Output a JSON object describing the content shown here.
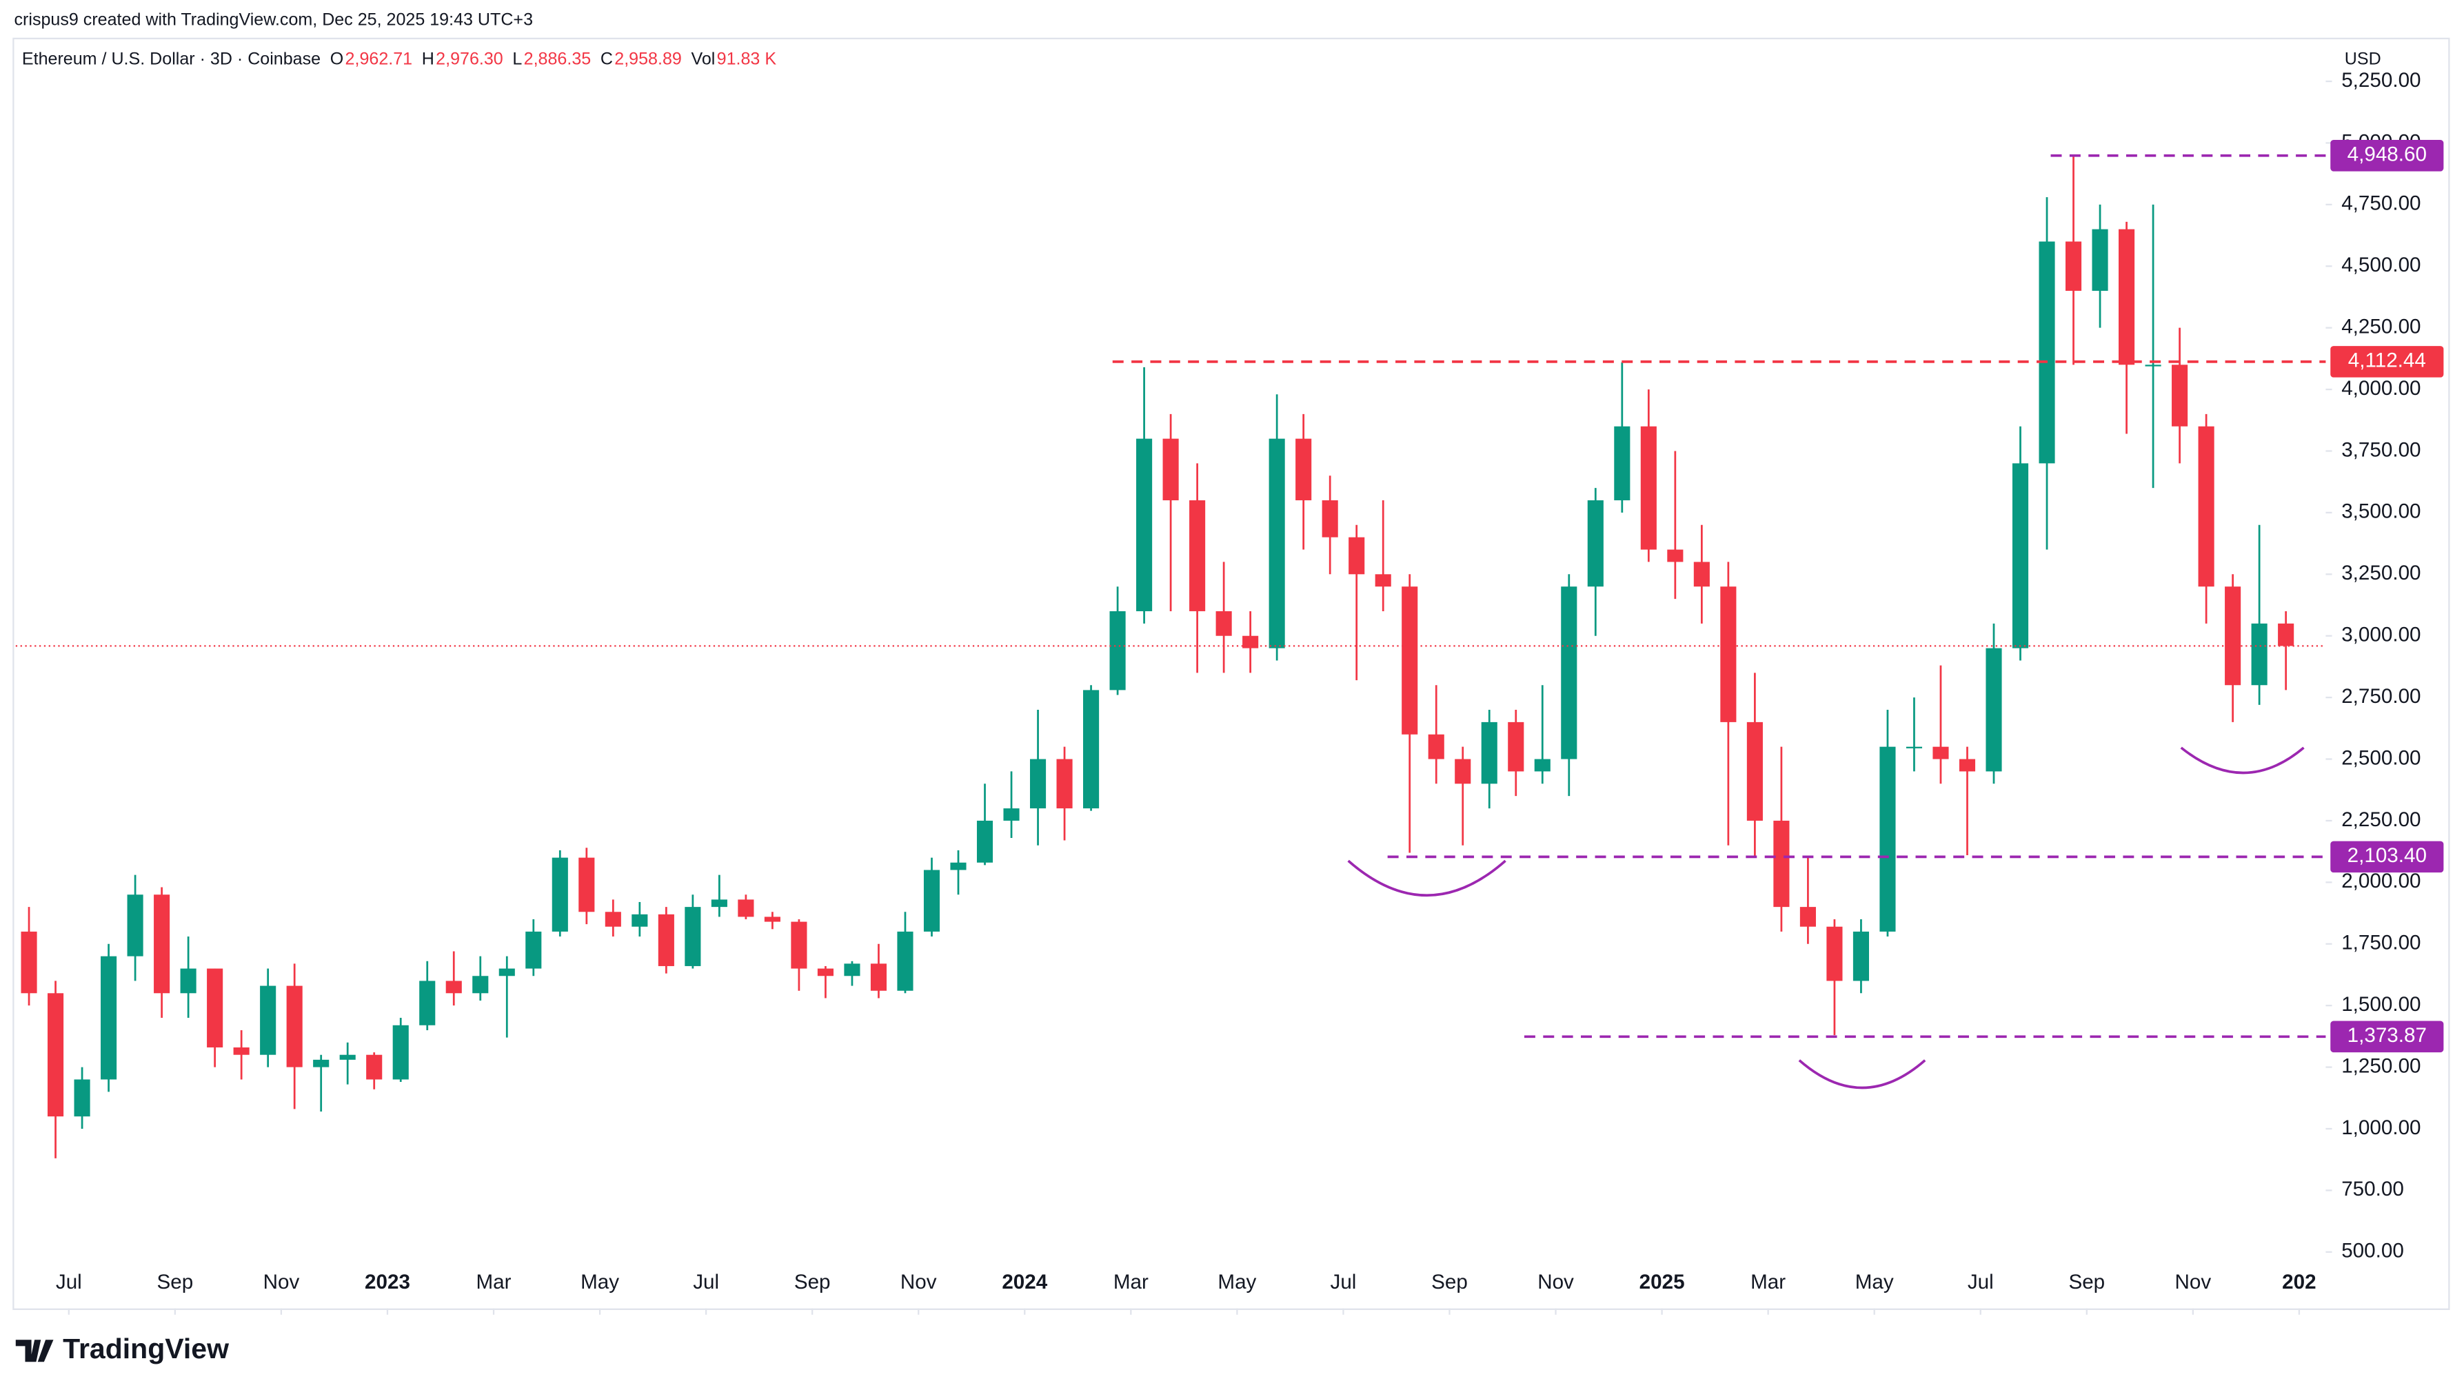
{
  "header": {
    "credit": "crispus9 created with TradingView.com, Dec 25, 2025 19:43 UTC+3",
    "symbol": "Ethereum / U.S. Dollar · 3D · Coinbase",
    "ohlc": [
      {
        "key": "O",
        "value": "2,962.71"
      },
      {
        "key": "H",
        "value": "2,976.30"
      },
      {
        "key": "L",
        "value": "2,886.35"
      },
      {
        "key": "C",
        "value": "2,958.89"
      },
      {
        "key": "Vol",
        "value": "91.83 K"
      }
    ],
    "currency": "USD"
  },
  "footer": {
    "brand": "TradingView"
  },
  "chart_data": {
    "type": "candlestick",
    "categories": [
      null,
      null,
      null,
      null,
      null,
      null,
      null,
      null,
      null,
      null,
      null,
      null,
      null,
      null,
      null,
      null,
      null,
      null,
      null,
      null,
      null,
      null,
      null,
      null,
      null,
      null,
      null,
      null,
      null,
      null,
      null,
      null,
      null,
      null,
      null,
      null,
      null,
      null,
      null,
      null,
      null,
      null,
      null,
      null,
      null,
      null,
      null,
      null,
      null,
      null,
      null,
      null,
      null,
      null,
      null,
      null,
      null,
      null,
      null,
      null,
      null,
      null,
      null,
      null,
      null,
      null,
      null,
      null,
      null,
      null,
      null,
      null,
      null,
      null,
      null,
      null,
      null,
      null,
      null,
      null,
      null,
      null,
      null,
      null,
      null,
      null
    ],
    "open": [
      1800,
      1550,
      1050,
      1200,
      1700,
      1950,
      1550,
      1650,
      1330,
      1300,
      1580,
      1250,
      1280,
      1300,
      1200,
      1420,
      1600,
      1550,
      1620,
      1650,
      1800,
      2100,
      1880,
      1820,
      1870,
      1660,
      1900,
      1930,
      1860,
      1840,
      1650,
      1620,
      1670,
      1560,
      1800,
      2050,
      2080,
      2250,
      2300,
      2500,
      2300,
      2780,
      3100,
      3800,
      3550,
      3100,
      3000,
      2950,
      3800,
      3550,
      3400,
      3250,
      3200,
      2600,
      2500,
      2400,
      2650,
      2450,
      2500,
      3200,
      3550,
      3850,
      3350,
      3300,
      3200,
      2650,
      2250,
      1900,
      1820,
      1600,
      1800,
      2550,
      2550,
      2500,
      2450,
      2950,
      3700,
      4600,
      4400,
      4650,
      4100,
      4100,
      3850,
      3200,
      2800,
      3050
    ],
    "high": [
      1900,
      1600,
      1250,
      1750,
      2030,
      1980,
      1780,
      1650,
      1400,
      1650,
      1670,
      1300,
      1350,
      1310,
      1450,
      1680,
      1720,
      1700,
      1700,
      1850,
      2130,
      2140,
      1930,
      1920,
      1900,
      1950,
      2030,
      1950,
      1880,
      1850,
      1660,
      1680,
      1750,
      1880,
      2100,
      2130,
      2400,
      2450,
      2700,
      2550,
      2800,
      3200,
      4090,
      3900,
      3700,
      3300,
      3100,
      3980,
      3900,
      3650,
      3450,
      3550,
      3250,
      2800,
      2550,
      2700,
      2700,
      2800,
      3250,
      3600,
      4110,
      4000,
      3750,
      3450,
      3300,
      2850,
      2550,
      2100,
      1850,
      1850,
      2700,
      2750,
      2880,
      2550,
      3050,
      3850,
      4780,
      4950,
      4750,
      4680,
      4750,
      4250,
      3900,
      3250,
      3450,
      3100
    ],
    "low": [
      1500,
      880,
      1000,
      1150,
      1600,
      1450,
      1450,
      1250,
      1200,
      1250,
      1080,
      1070,
      1180,
      1160,
      1190,
      1400,
      1500,
      1520,
      1370,
      1620,
      1780,
      1830,
      1780,
      1780,
      1630,
      1650,
      1860,
      1850,
      1810,
      1560,
      1530,
      1580,
      1530,
      1550,
      1780,
      1950,
      2070,
      2180,
      2150,
      2170,
      2290,
      2760,
      3050,
      3100,
      2850,
      2850,
      2850,
      2900,
      3350,
      3250,
      2820,
      3100,
      2120,
      2400,
      2150,
      2300,
      2350,
      2400,
      2350,
      3000,
      3500,
      3300,
      3150,
      3050,
      2150,
      2100,
      1800,
      1750,
      1380,
      1550,
      1780,
      2450,
      2400,
      2110,
      2400,
      2900,
      3350,
      4100,
      4250,
      3820,
      3600,
      3700,
      3050,
      2650,
      2720,
      2780
    ],
    "close": [
      1550,
      1050,
      1200,
      1700,
      1950,
      1550,
      1650,
      1330,
      1300,
      1580,
      1250,
      1280,
      1300,
      1200,
      1420,
      1600,
      1550,
      1620,
      1650,
      1800,
      2100,
      1880,
      1820,
      1870,
      1660,
      1900,
      1930,
      1860,
      1840,
      1650,
      1620,
      1670,
      1560,
      1800,
      2050,
      2080,
      2250,
      2300,
      2500,
      2300,
      2780,
      3100,
      3800,
      3550,
      3100,
      3000,
      2950,
      3800,
      3550,
      3400,
      3250,
      3200,
      2600,
      2500,
      2400,
      2650,
      2450,
      2500,
      3200,
      3550,
      3850,
      3350,
      3300,
      3200,
      2650,
      2250,
      1900,
      1820,
      1600,
      1800,
      2550,
      2550,
      2500,
      2450,
      2950,
      3700,
      4600,
      4400,
      4650,
      4100,
      4100,
      3850,
      3200,
      2800,
      3050,
      2958.89
    ],
    "up_color": "#089981",
    "down_color": "#f23645",
    "xlim": [
      0,
      87
    ],
    "xticks": [
      {
        "value": 2,
        "label": "Jul"
      },
      {
        "value": 6,
        "label": "Sep"
      },
      {
        "value": 10,
        "label": "Nov"
      },
      {
        "value": 14,
        "label": "2023"
      },
      {
        "value": 18,
        "label": "Mar"
      },
      {
        "value": 22,
        "label": "May"
      },
      {
        "value": 26,
        "label": "Jul"
      },
      {
        "value": 30,
        "label": "Sep"
      },
      {
        "value": 34,
        "label": "Nov"
      },
      {
        "value": 38,
        "label": "2024"
      },
      {
        "value": 42,
        "label": "Mar"
      },
      {
        "value": 46,
        "label": "May"
      },
      {
        "value": 50,
        "label": "Jul"
      },
      {
        "value": 54,
        "label": "Sep"
      },
      {
        "value": 58,
        "label": "Nov"
      },
      {
        "value": 62,
        "label": "2025"
      },
      {
        "value": 66,
        "label": "Mar"
      },
      {
        "value": 70,
        "label": "May"
      },
      {
        "value": 74,
        "label": "Jul"
      },
      {
        "value": 78,
        "label": "Sep"
      },
      {
        "value": 82,
        "label": "Nov"
      },
      {
        "value": 86,
        "label": "202"
      }
    ],
    "ylim": [
      271,
      5427
    ],
    "yticks": [
      {
        "value": 500,
        "label": "500.00"
      },
      {
        "value": 750,
        "label": "750.00"
      },
      {
        "value": 1000,
        "label": "1,000.00"
      },
      {
        "value": 1250,
        "label": "1,250.00"
      },
      {
        "value": 1500,
        "label": "1,500.00"
      },
      {
        "value": 1750,
        "label": "1,750.00"
      },
      {
        "value": 2000,
        "label": "2,000.00"
      },
      {
        "value": 2250,
        "label": "2,250.00"
      },
      {
        "value": 2500,
        "label": "2,500.00"
      },
      {
        "value": 2750,
        "label": "2,750.00"
      },
      {
        "value": 3000,
        "label": "3,000.00"
      },
      {
        "value": 3250,
        "label": "3,250.00"
      },
      {
        "value": 3500,
        "label": "3,500.00"
      },
      {
        "value": 3750,
        "label": "3,750.00"
      },
      {
        "value": 4000,
        "label": "4,000.00"
      },
      {
        "value": 4250,
        "label": "4,250.00"
      },
      {
        "value": 4500,
        "label": "4,500.00"
      },
      {
        "value": 4750,
        "label": "4,750.00"
      },
      {
        "value": 5000,
        "label": "5,000.00"
      },
      {
        "value": 5250,
        "label": "5,250.00"
      }
    ],
    "grid": false,
    "price_line": 2958.89,
    "price_line_color": "#f23645",
    "levels": [
      {
        "value": 4948.6,
        "label": "4,948.60",
        "color": "#9c27b0"
      },
      {
        "value": 4112.44,
        "label": "4,112.44",
        "color": "#f23645"
      },
      {
        "value": 2103.4,
        "label": "2,103.40",
        "color": "#9c27b0"
      },
      {
        "value": 1373.87,
        "label": "1,373.87",
        "color": "#9c27b0"
      }
    ]
  }
}
